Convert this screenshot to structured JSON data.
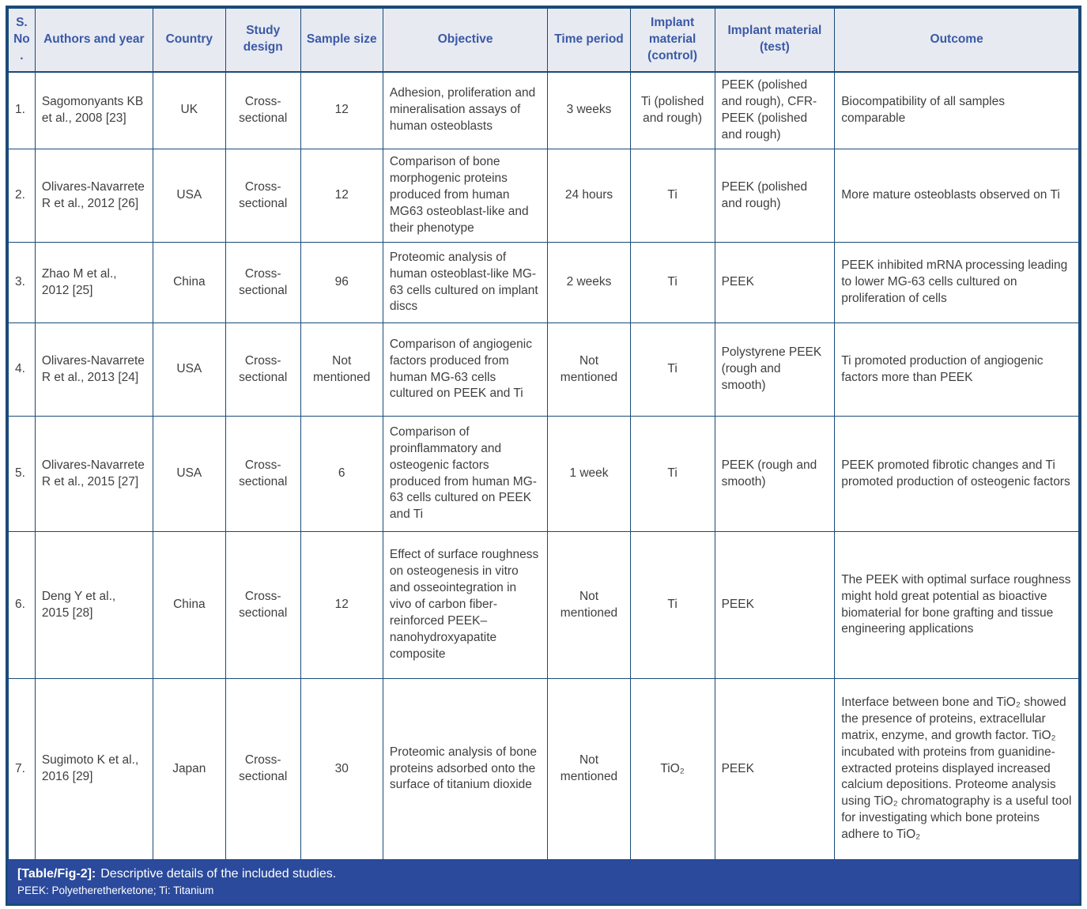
{
  "colors": {
    "border": "#1a4a78",
    "header_bg": "#e8eaf2",
    "header_text": "#3a5aa5",
    "body_text": "#3f3f3f",
    "caption_bg": "#2b4a9b",
    "caption_text": "#ffffff"
  },
  "table": {
    "columns": [
      "S. No.",
      "Authors and year",
      "Country",
      "Study design",
      "Sample size",
      "Objective",
      "Time period",
      "Implant material (control)",
      "Implant material (test)",
      "Outcome"
    ],
    "rows": [
      {
        "sno": "1.",
        "authors": "Sagomonyants KB et al., 2008 [23]",
        "country": "UK",
        "design": "Cross-sectional",
        "sample": "12",
        "objective": "Adhesion, proliferation and mineralisation assays of human osteoblasts",
        "time": "3 weeks",
        "control": "Ti (polished and rough)",
        "test": "PEEK (polished and rough), CFR-PEEK (polished and rough)",
        "outcome": "Biocompatibility of all samples comparable"
      },
      {
        "sno": "2.",
        "authors": "Olivares-Navarrete R et al., 2012 [26]",
        "country": "USA",
        "design": "Cross-sectional",
        "sample": "12",
        "objective": "Comparison of bone morphogenic proteins produced from human MG63 osteoblast-like and their phenotype",
        "time": "24 hours",
        "control": "Ti",
        "test": "PEEK (polished and rough)",
        "outcome": "More mature osteoblasts observed on Ti"
      },
      {
        "sno": "3.",
        "authors": "Zhao M et al., 2012 [25]",
        "country": "China",
        "design": "Cross-sectional",
        "sample": "96",
        "objective": "Proteomic analysis of human osteoblast-like MG-63 cells cultured on implant discs",
        "time": "2 weeks",
        "control": "Ti",
        "test": "PEEK",
        "outcome": "PEEK inhibited mRNA processing leading to lower MG-63 cells cultured on proliferation of cells"
      },
      {
        "sno": "4.",
        "authors": "Olivares-Navarrete R et al., 2013 [24]",
        "country": "USA",
        "design": "Cross-sectional",
        "sample": "Not mentioned",
        "objective": "Comparison of angiogenic factors produced from human MG-63 cells cultured on PEEK and Ti",
        "time": "Not mentioned",
        "control": "Ti",
        "test": "Polystyrene PEEK (rough and smooth)",
        "outcome": "Ti promoted production of angiogenic factors more than PEEK"
      },
      {
        "sno": "5.",
        "authors": "Olivares-Navarrete R et al., 2015 [27]",
        "country": "USA",
        "design": "Cross-sectional",
        "sample": "6",
        "objective": "Comparison of proinflammatory and osteogenic factors produced from human MG-63 cells cultured on PEEK and Ti",
        "time": "1 week",
        "control": "Ti",
        "test": "PEEK (rough and smooth)",
        "outcome": "PEEK promoted fibrotic changes and Ti promoted production of osteogenic factors"
      },
      {
        "sno": "6.",
        "authors": "Deng Y et al., 2015 [28]",
        "country": "China",
        "design": "Cross-sectional",
        "sample": "12",
        "objective": "Effect of surface roughness on osteogenesis in vitro and osseointegration in vivo of carbon fiber-reinforced PEEK–nanohydroxyapatite composite",
        "time": "Not mentioned",
        "control": "Ti",
        "test": "PEEK",
        "outcome": "The PEEK with optimal surface roughness might hold great potential as bioactive biomaterial for bone grafting and tissue engineering applications"
      },
      {
        "sno": "7.",
        "authors": "Sugimoto K et al., 2016 [29]",
        "country": "Japan",
        "design": "Cross-sectional",
        "sample": "30",
        "objective": "Proteomic analysis of bone proteins adsorbed onto the surface of titanium dioxide",
        "time": "Not mentioned",
        "control": "TiO₂",
        "test": "PEEK",
        "outcome": "Interface between bone and TiO₂ showed the presence of proteins, extracellular matrix, enzyme, and growth factor. TiO₂ incubated with proteins from guanidine-extracted proteins displayed increased calcium depositions. Proteome analysis using TiO₂ chromatography is a useful tool for investigating which bone proteins adhere to TiO₂"
      }
    ]
  },
  "caption": {
    "label": "[Table/Fig-2]:",
    "title": "Descriptive details of the included studies.",
    "footnote": "PEEK: Polyetheretherketone; Ti: Titanium"
  }
}
